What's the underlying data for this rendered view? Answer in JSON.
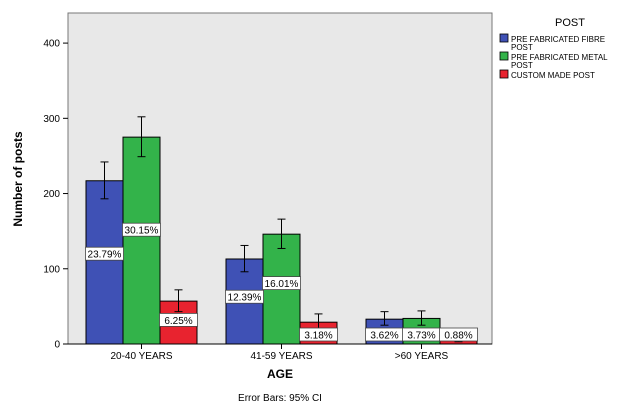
{
  "chart_data": {
    "type": "bar",
    "categories": [
      "20-40 YEARS",
      "41-59 YEARS",
      ">60 YEARS"
    ],
    "series": [
      {
        "name_lines": [
          "PRE FABRICATED FIBRE",
          "POST"
        ],
        "color": "#3f51b5",
        "values": [
          217,
          113,
          33
        ],
        "err_low": [
          193,
          96,
          25
        ],
        "err_high": [
          242,
          131,
          43
        ],
        "labels": [
          "23.79%",
          "12.39%",
          "3.62%"
        ]
      },
      {
        "name_lines": [
          "PRE FABRICATED METAL",
          "POST"
        ],
        "color": "#33b34a",
        "values": [
          275,
          146,
          34
        ],
        "err_low": [
          249,
          127,
          25
        ],
        "err_high": [
          302,
          166,
          44
        ],
        "labels": [
          "30.15%",
          "16.01%",
          "3.73%"
        ]
      },
      {
        "name_lines": [
          "CUSTOM MADE POST"
        ],
        "color": "#e8232f",
        "values": [
          57,
          29,
          8
        ],
        "err_low": [
          43,
          19,
          3
        ],
        "err_high": [
          72,
          40,
          14
        ],
        "labels": [
          "6.25%",
          "3.18%",
          "0.88%"
        ]
      }
    ],
    "xlabel": "AGE",
    "ylabel": "Number of posts",
    "ylim": [
      0,
      440
    ],
    "yticks": [
      0,
      100,
      200,
      300,
      400
    ],
    "legend_title": "POST",
    "legend_position": "right",
    "footnote": "Error Bars: 95% CI",
    "grid": false,
    "plot_background": "#e8e8e8"
  }
}
